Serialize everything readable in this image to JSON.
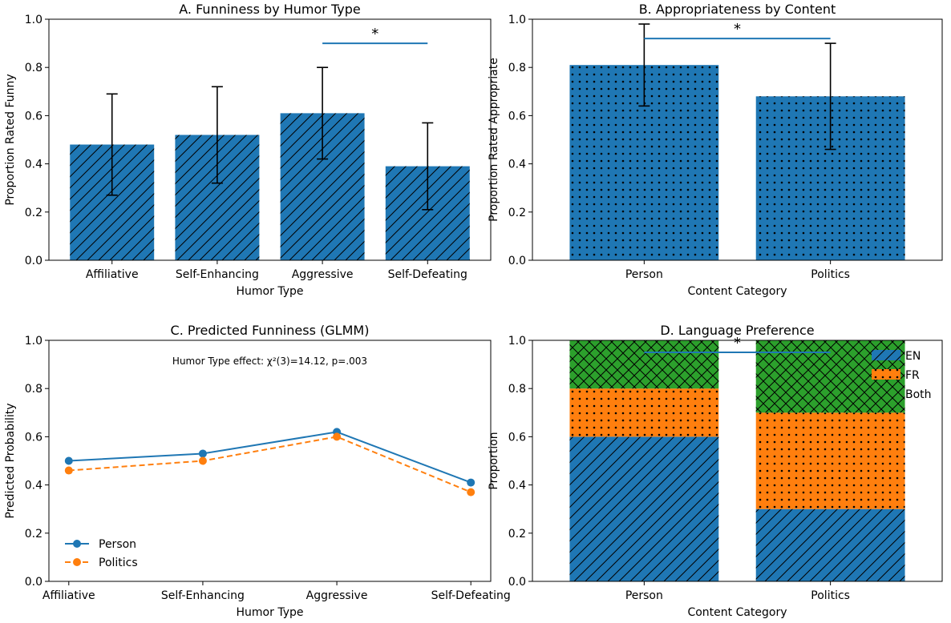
{
  "colors": {
    "blue": "#1f77b4",
    "orange": "#ff7f0e",
    "green": "#2ca02c",
    "black": "#000000"
  },
  "chart_data": [
    {
      "id": "A",
      "type": "bar",
      "title": "A. Funniness by Humor Type",
      "xlabel": "Humor Type",
      "ylabel": "Proportion Rated Funny",
      "ylim": [
        0,
        1
      ],
      "yticks": [
        "0.0",
        "0.2",
        "0.4",
        "0.6",
        "0.8",
        "1.0"
      ],
      "categories": [
        "Affiliative",
        "Self-Enhancing",
        "Aggressive",
        "Self-Defeating"
      ],
      "values": [
        0.48,
        0.52,
        0.61,
        0.39
      ],
      "error_low": [
        0.27,
        0.32,
        0.42,
        0.21
      ],
      "error_high": [
        0.69,
        0.72,
        0.8,
        0.57
      ],
      "hatch": "diagonal",
      "significance": {
        "from": 2,
        "to": 3,
        "y": 0.9,
        "label": "*"
      }
    },
    {
      "id": "B",
      "type": "bar",
      "title": "B. Appropriateness by Content",
      "xlabel": "Content Category",
      "ylabel": "Proportion Rated Appropriate",
      "ylim": [
        0,
        1
      ],
      "yticks": [
        "0.0",
        "0.2",
        "0.4",
        "0.6",
        "0.8",
        "1.0"
      ],
      "categories": [
        "Person",
        "Politics"
      ],
      "values": [
        0.81,
        0.68
      ],
      "error_low": [
        0.64,
        0.46
      ],
      "error_high": [
        0.98,
        0.9
      ],
      "hatch": "dots",
      "significance": {
        "from": 0,
        "to": 1,
        "y": 0.92,
        "label": "*"
      }
    },
    {
      "id": "C",
      "type": "line",
      "title": "C. Predicted Funniness (GLMM)",
      "xlabel": "Humor Type",
      "ylabel": "Predicted Probability",
      "ylim": [
        0,
        1
      ],
      "yticks": [
        "0.0",
        "0.2",
        "0.4",
        "0.6",
        "0.8",
        "1.0"
      ],
      "categories": [
        "Affiliative",
        "Self-Enhancing",
        "Aggressive",
        "Self-Defeating"
      ],
      "annotation": "Humor Type effect: χ²(3)=14.12, p=.003",
      "legend": "lower-left",
      "series": [
        {
          "name": "Person",
          "values": [
            0.5,
            0.53,
            0.62,
            0.41
          ],
          "style": "solid"
        },
        {
          "name": "Politics",
          "values": [
            0.46,
            0.5,
            0.6,
            0.37
          ],
          "style": "dashed"
        }
      ]
    },
    {
      "id": "D",
      "type": "bar",
      "stacked": true,
      "title": "D. Language Preference",
      "xlabel": "Content Category",
      "ylabel": "Proportion",
      "ylim": [
        0,
        1
      ],
      "yticks": [
        "0.0",
        "0.2",
        "0.4",
        "0.6",
        "0.8",
        "1.0"
      ],
      "categories": [
        "Person",
        "Politics"
      ],
      "legend": "top-right",
      "series": [
        {
          "name": "EN",
          "values": [
            0.6,
            0.3
          ],
          "hatch": "diagonal"
        },
        {
          "name": "FR",
          "values": [
            0.2,
            0.4
          ],
          "hatch": "dots"
        },
        {
          "name": "Both",
          "values": [
            0.2,
            0.3
          ],
          "hatch": "crosshatch"
        }
      ],
      "significance": {
        "from": 0,
        "to": 1,
        "y": 0.95,
        "label": "*"
      }
    }
  ]
}
